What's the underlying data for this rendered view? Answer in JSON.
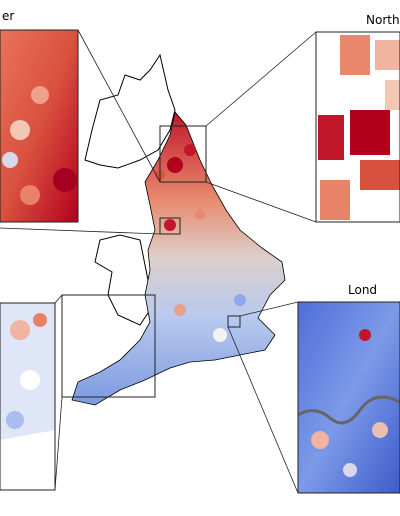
{
  "insets": [
    {
      "label": "er"
    },
    {
      "label": "North"
    },
    {
      "label": "Lond"
    }
  ]
}
